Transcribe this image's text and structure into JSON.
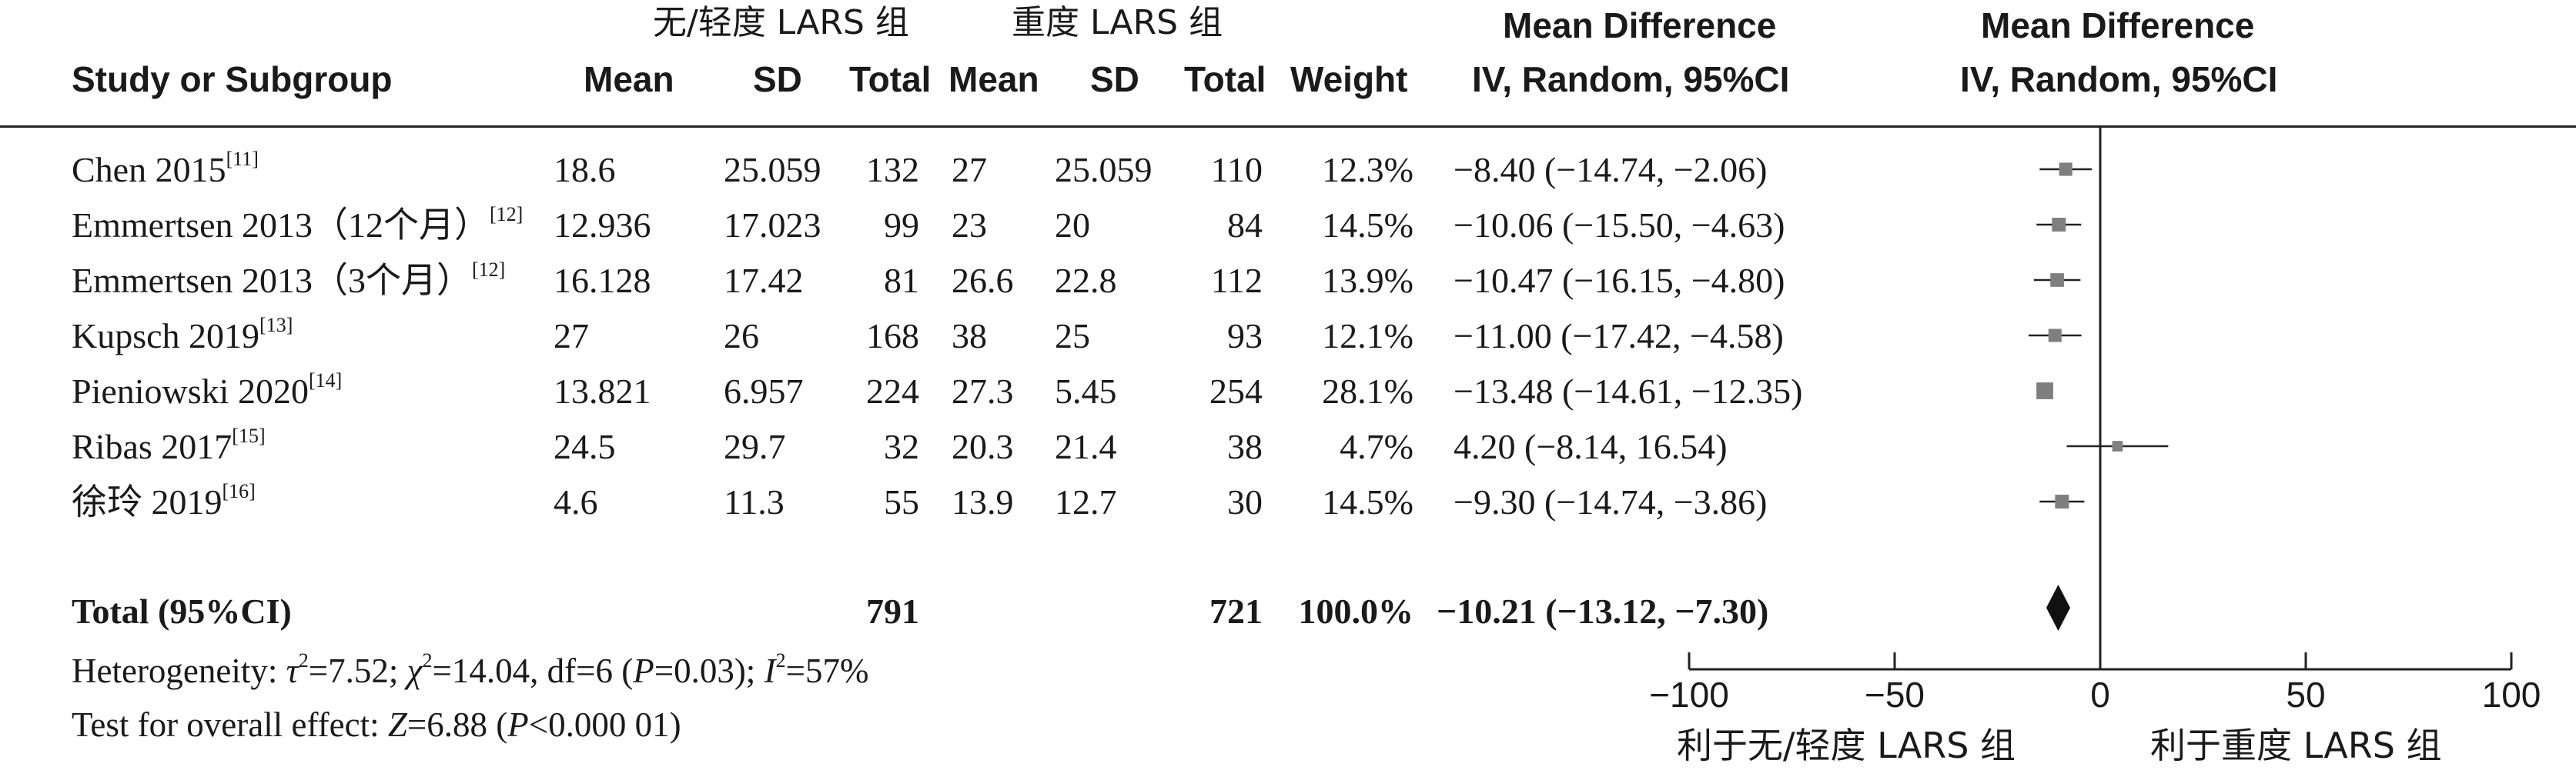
{
  "header": {
    "group_left": "无/轻度 LARS 组",
    "group_right": "重度 LARS 组",
    "md_title_left": "Mean Difference",
    "md_title_right": "Mean Difference",
    "study_col": "Study or Subgroup",
    "mean1": "Mean",
    "sd1": "SD",
    "total1": "Total",
    "mean2": "Mean",
    "sd2": "SD",
    "total2": "Total",
    "weight": "Weight",
    "md_method_left": "IV, Random, 95%CI",
    "md_method_right": "IV, Random, 95%CI"
  },
  "studies": [
    {
      "name": "Chen 2015",
      "ref": "[11]",
      "mean1": "18.6",
      "sd1": "25.059",
      "total1": "132",
      "mean2": "27",
      "sd2": "25.059",
      "total2": "110",
      "weight": "12.3%",
      "ci_text": "−8.40 (−14.74, −2.06)"
    },
    {
      "name": "Emmertsen 2013（12个月）",
      "ref": "[12]",
      "mean1": "12.936",
      "sd1": "17.023",
      "total1": "99",
      "mean2": "23",
      "sd2": "20",
      "total2": "84",
      "weight": "14.5%",
      "ci_text": "−10.06 (−15.50, −4.63)"
    },
    {
      "name": "Emmertsen 2013（3个月）",
      "ref": "[12]",
      "mean1": "16.128",
      "sd1": "17.42",
      "total1": "81",
      "mean2": "26.6",
      "sd2": "22.8",
      "total2": "112",
      "weight": "13.9%",
      "ci_text": "−10.47 (−16.15, −4.80)"
    },
    {
      "name": "Kupsch 2019",
      "ref": "[13]",
      "mean1": "27",
      "sd1": "26",
      "total1": "168",
      "mean2": "38",
      "sd2": "25",
      "total2": "93",
      "weight": "12.1%",
      "ci_text": "−11.00 (−17.42, −4.58)"
    },
    {
      "name": "Pieniowski 2020",
      "ref": "[14]",
      "mean1": "13.821",
      "sd1": "6.957",
      "total1": "224",
      "mean2": "27.3",
      "sd2": "5.45",
      "total2": "254",
      "weight": "28.1%",
      "ci_text": "−13.48 (−14.61, −12.35)"
    },
    {
      "name": "Ribas 2017",
      "ref": "[15]",
      "mean1": "24.5",
      "sd1": "29.7",
      "total1": "32",
      "mean2": "20.3",
      "sd2": "21.4",
      "total2": "38",
      "weight": "4.7%",
      "ci_text": "4.20 (−8.14, 16.54)"
    },
    {
      "name": "徐玲 2019",
      "ref": "[16]",
      "mean1": "4.6",
      "sd1": "11.3",
      "total1": "55",
      "mean2": "13.9",
      "sd2": "12.7",
      "total2": "30",
      "weight": "14.5%",
      "ci_text": "−9.30 (−14.74, −3.86)"
    }
  ],
  "total": {
    "label": "Total (95%CI)",
    "total1": "791",
    "total2": "721",
    "weight": "100.0%",
    "ci_text": "−10.21 (−13.12, −7.30)"
  },
  "heterogeneity": {
    "prefix": "Heterogeneity: ",
    "tau": "τ",
    "tau_val": "=7.52; ",
    "chi": "χ",
    "chi_val": "=14.04, df=6 (",
    "p": "P",
    "p_val": "=0.03); ",
    "i": "I",
    "i_val": "=57%",
    "sup2": "2"
  },
  "overall": {
    "prefix": "Test for overall effect: ",
    "z": "Z",
    "z_val": "=6.88 (",
    "p": "P",
    "p_val": "<0.000 01)"
  },
  "axis": {
    "ticks": [
      "−100",
      "−50",
      "0",
      "50",
      "100"
    ],
    "favors_left": "利于无/轻度 LARS 组",
    "favors_right": "利于重度 LARS 组"
  },
  "chart_data": {
    "type": "forest",
    "xlim": [
      -100,
      100
    ],
    "xticks": [
      -100,
      -50,
      0,
      50,
      100
    ],
    "effects": [
      {
        "md": -8.4,
        "lo": -14.74,
        "hi": -2.06,
        "weight": 12.3
      },
      {
        "md": -10.06,
        "lo": -15.5,
        "hi": -4.63,
        "weight": 14.5
      },
      {
        "md": -10.47,
        "lo": -16.15,
        "hi": -4.8,
        "weight": 13.9
      },
      {
        "md": -11.0,
        "lo": -17.42,
        "hi": -4.58,
        "weight": 12.1
      },
      {
        "md": -13.48,
        "lo": -14.61,
        "hi": -12.35,
        "weight": 28.1
      },
      {
        "md": 4.2,
        "lo": -8.14,
        "hi": 16.54,
        "weight": 4.7
      },
      {
        "md": -9.3,
        "lo": -14.74,
        "hi": -3.86,
        "weight": 14.5
      }
    ],
    "pooled": {
      "md": -10.21,
      "lo": -13.12,
      "hi": -7.3
    },
    "colors": {
      "square": "#7f7f7f",
      "diamond": "#111111",
      "lines": "#222222"
    }
  }
}
